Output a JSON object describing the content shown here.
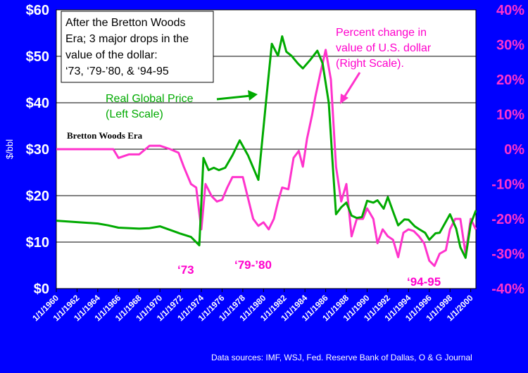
{
  "chart_data": {
    "type": "line",
    "ylabel": "$/bbl",
    "ylim": [
      0,
      60
    ],
    "y2lim": [
      -40,
      40
    ],
    "yticks": [
      "$0",
      "$10",
      "$20",
      "$30",
      "$40",
      "$50",
      "$60"
    ],
    "y2ticks": [
      "-40%",
      "-30%",
      "-20%",
      "-10%",
      "0%",
      "10%",
      "20%",
      "30%",
      "40%"
    ],
    "xticks": [
      "1/1/1960",
      "1/1/1962",
      "1/1/1964",
      "1/1/1966",
      "1/1/1968",
      "1/1/1970",
      "1/1/1972",
      "1/1/1974",
      "1/1/1976",
      "1/1/1978",
      "1/1/1980",
      "1/1/1982",
      "1/1/1984",
      "1/1/1986",
      "1/1/1988",
      "1/1/1990",
      "1/1/1992",
      "1/1/1994",
      "1/1/1996",
      "1/1/1998",
      "1/1/2000"
    ],
    "xlim": [
      1960,
      2000.5
    ],
    "series": [
      {
        "name": "Real Global Price",
        "axis": "left",
        "color": "#00aa00",
        "x": [
          1960,
          1962,
          1964,
          1965,
          1966,
          1968,
          1969,
          1970,
          1971,
          1972,
          1973,
          1973.8,
          1974.2,
          1974.7,
          1975.2,
          1975.7,
          1976.3,
          1977,
          1977.7,
          1978.5,
          1979.5,
          1980.3,
          1980.8,
          1981.4,
          1981.8,
          1982.2,
          1982.7,
          1983.3,
          1983.8,
          1984.5,
          1985.2,
          1985.7,
          1986.3,
          1986.7,
          1987,
          1987.5,
          1988,
          1988.5,
          1989,
          1989.5,
          1990,
          1990.6,
          1991,
          1991.6,
          1992,
          1992.6,
          1993,
          1993.6,
          1994,
          1994.6,
          1995,
          1995.6,
          1996,
          1996.6,
          1997,
          1997.6,
          1998,
          1998.6,
          1999,
          1999.5,
          2000,
          2000.5
        ],
        "values": [
          14.6,
          14.3,
          14.0,
          13.6,
          13.1,
          12.9,
          13.0,
          13.4,
          12.6,
          11.8,
          11.1,
          9.3,
          28.1,
          25.5,
          26.0,
          25.5,
          26.0,
          28.7,
          31.9,
          28.7,
          23.4,
          41.5,
          52.7,
          50.1,
          54.3,
          51.0,
          50.1,
          48.5,
          47.4,
          49.2,
          51.2,
          48.5,
          40.0,
          26.0,
          16.0,
          17.5,
          18.5,
          15.7,
          15.2,
          15.4,
          18.9,
          18.5,
          19.0,
          17.2,
          19.7,
          16.0,
          13.6,
          14.9,
          14.8,
          13.4,
          12.8,
          12.0,
          10.5,
          11.9,
          12.0,
          14.4,
          16.0,
          12.9,
          8.9,
          6.6,
          13.9,
          16.8
        ]
      },
      {
        "name": "Percent change in value of U.S. dollar",
        "axis": "right",
        "color": "#ff33cc",
        "x": [
          1960,
          1962,
          1964,
          1965.5,
          1966,
          1967,
          1968,
          1969,
          1970,
          1971,
          1971.8,
          1972.3,
          1973,
          1973.5,
          1974,
          1974.4,
          1975,
          1975.5,
          1976,
          1976.5,
          1977,
          1978,
          1979,
          1979.5,
          1980,
          1980.5,
          1981,
          1981.4,
          1981.8,
          1982.4,
          1982.9,
          1983.4,
          1983.8,
          1984.2,
          1984.7,
          1985,
          1985.5,
          1986,
          1986.5,
          1987,
          1987.5,
          1988,
          1988.5,
          1989,
          1989.6,
          1990,
          1990.6,
          1991,
          1991.5,
          1992,
          1992.5,
          1993,
          1993.5,
          1994,
          1994.5,
          1995,
          1995.5,
          1996,
          1996.5,
          1997,
          1997.6,
          1998,
          1998.5,
          1999,
          1999.5,
          2000,
          2000.5
        ],
        "values": [
          0,
          0,
          0,
          0,
          -2.5,
          -1.5,
          -1.5,
          1,
          1,
          0,
          -1,
          -5,
          -10,
          -11,
          -23,
          -10,
          -13.5,
          -15,
          -14.5,
          -11,
          -8,
          -8,
          -20,
          -22,
          -21,
          -23,
          -20,
          -15,
          -11,
          -11.5,
          -2.5,
          -0.5,
          -5,
          3,
          10,
          15,
          22,
          28.5,
          20,
          -5,
          -15,
          -10,
          -25,
          -20,
          -20,
          -17,
          -20,
          -27,
          -23,
          -25,
          -26,
          -31,
          -24,
          -23,
          -23.5,
          -25,
          -27,
          -32,
          -33.5,
          -30,
          -29,
          -23,
          -20,
          -20,
          -30,
          -20,
          -23
        ]
      }
    ],
    "annotations": {
      "box_lines": [
        "After the Bretton Woods",
        "Era; 3 major drops in the",
        "value of the dollar:",
        "‘73, ‘79-’80, & ‘94-95"
      ],
      "bretton_woods": "Bretton Woods Era",
      "green_lines": [
        "Real Global Price",
        "(Left Scale)"
      ],
      "pink_lines": [
        "Percent change in",
        "value of U.S. dollar",
        "(Right Scale)."
      ],
      "era_73": "‘73",
      "era_79_80": "‘79-’80",
      "era_94_95": "‘94-95",
      "source": "Data sources: IMF, WSJ, Fed. Reserve Bank of Dallas, O & G Journal"
    }
  }
}
